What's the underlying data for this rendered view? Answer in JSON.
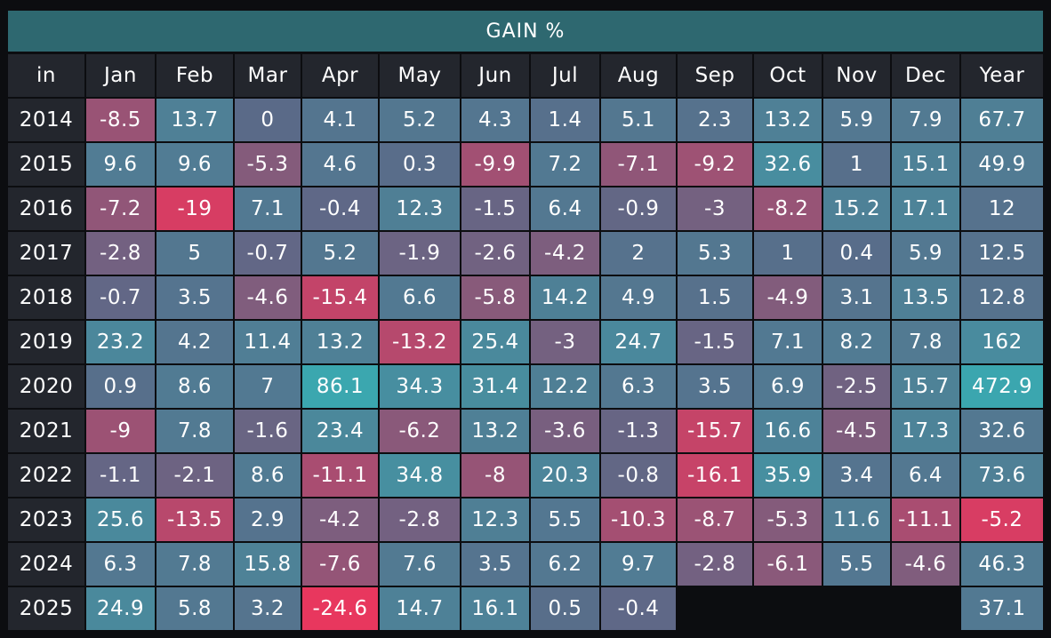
{
  "chart_data": {
    "type": "heatmap",
    "title": "GAIN %",
    "corner_label": "in",
    "columns": [
      "Jan",
      "Feb",
      "Mar",
      "Apr",
      "May",
      "Jun",
      "Jul",
      "Aug",
      "Sep",
      "Oct",
      "Nov",
      "Dec",
      "Year"
    ],
    "rows": [
      {
        "year": "2014",
        "values": [
          "-8.5",
          "13.7",
          "0",
          "4.1",
          "5.2",
          "4.3",
          "1.4",
          "5.1",
          "2.3",
          "13.2",
          "5.9",
          "7.9",
          "67.7"
        ]
      },
      {
        "year": "2015",
        "values": [
          "9.6",
          "9.6",
          "-5.3",
          "4.6",
          "0.3",
          "-9.9",
          "7.2",
          "-7.1",
          "-9.2",
          "32.6",
          "1",
          "15.1",
          "49.9"
        ]
      },
      {
        "year": "2016",
        "values": [
          "-7.2",
          "-19",
          "7.1",
          "-0.4",
          "12.3",
          "-1.5",
          "6.4",
          "-0.9",
          "-3",
          "-8.2",
          "15.2",
          "17.1",
          "12"
        ]
      },
      {
        "year": "2017",
        "values": [
          "-2.8",
          "5",
          "-0.7",
          "5.2",
          "-1.9",
          "-2.6",
          "-4.2",
          "2",
          "5.3",
          "1",
          "0.4",
          "5.9",
          "12.5"
        ]
      },
      {
        "year": "2018",
        "values": [
          "-0.7",
          "3.5",
          "-4.6",
          "-15.4",
          "6.6",
          "-5.8",
          "14.2",
          "4.9",
          "1.5",
          "-4.9",
          "3.1",
          "13.5",
          "12.8"
        ]
      },
      {
        "year": "2019",
        "values": [
          "23.2",
          "4.2",
          "11.4",
          "13.2",
          "-13.2",
          "25.4",
          "-3",
          "24.7",
          "-1.5",
          "7.1",
          "8.2",
          "7.8",
          "162"
        ]
      },
      {
        "year": "2020",
        "values": [
          "0.9",
          "8.6",
          "7",
          "86.1",
          "34.3",
          "31.4",
          "12.2",
          "6.3",
          "3.5",
          "6.9",
          "-2.5",
          "15.7",
          "472.9"
        ]
      },
      {
        "year": "2021",
        "values": [
          "-9",
          "7.8",
          "-1.6",
          "23.4",
          "-6.2",
          "13.2",
          "-3.6",
          "-1.3",
          "-15.7",
          "16.6",
          "-4.5",
          "17.3",
          "32.6"
        ]
      },
      {
        "year": "2022",
        "values": [
          "-1.1",
          "-2.1",
          "8.6",
          "-11.1",
          "34.8",
          "-8",
          "20.3",
          "-0.8",
          "-16.1",
          "35.9",
          "3.4",
          "6.4",
          "73.6"
        ]
      },
      {
        "year": "2023",
        "values": [
          "25.6",
          "-13.5",
          "2.9",
          "-4.2",
          "-2.8",
          "12.3",
          "5.5",
          "-10.3",
          "-8.7",
          "-5.3",
          "11.6",
          "-11.1",
          "-5.2"
        ]
      },
      {
        "year": "2024",
        "values": [
          "6.3",
          "7.8",
          "15.8",
          "-7.6",
          "7.6",
          "3.5",
          "6.2",
          "9.7",
          "-2.8",
          "-6.1",
          "5.5",
          "-4.6",
          "46.3"
        ]
      },
      {
        "year": "2025",
        "values": [
          "24.9",
          "5.8",
          "3.2",
          "-24.6",
          "14.7",
          "16.1",
          "0.5",
          "-0.4",
          "",
          "",
          "",
          "",
          "37.1"
        ]
      }
    ],
    "colors": {
      "negative_strong": "#e8375e",
      "neutral": "#5a6a88",
      "positive_strong": "#3aa8b0",
      "header_bg": "#23262d",
      "title_bg": "#2e6870"
    }
  }
}
